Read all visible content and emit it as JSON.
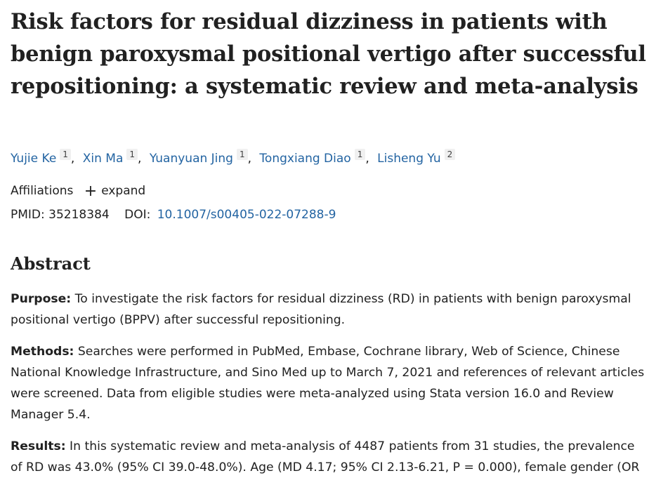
{
  "article": {
    "title": "Risk factors for residual dizziness in patients with benign paroxysmal positional vertigo after successful repositioning: a systematic review and meta-analysis",
    "authors": [
      {
        "name": "Yujie Ke",
        "aff": "1"
      },
      {
        "name": "Xin Ma",
        "aff": "1"
      },
      {
        "name": "Yuanyuan Jing",
        "aff": "1"
      },
      {
        "name": "Tongxiang Diao",
        "aff": "1"
      },
      {
        "name": "Lisheng Yu",
        "aff": "2"
      }
    ],
    "affiliations_label": "Affiliations",
    "expand_label": "expand",
    "pmid_label": "PMID:",
    "pmid": "35218384",
    "doi_label": "DOI:",
    "doi": "10.1007/s00405-022-07288-9"
  },
  "abstract": {
    "heading": "Abstract",
    "purpose_label": "Purpose:",
    "purpose_text": " To investigate the risk factors for residual dizziness (RD) in patients with benign paroxysmal positional vertigo (BPPV) after successful repositioning.",
    "methods_label": "Methods:",
    "methods_text": " Searches were performed in PubMed, Embase, Cochrane library, Web of Science, Chinese National Knowledge Infrastructure, and Sino Med up to March 7, 2021 and references of relevant articles were screened. Data from eligible studies were meta-analyzed using Stata version 16.0 and Review Manager 5.4.",
    "results_label": "Results:",
    "results_text": " In this systematic review and meta-analysis of 4487 patients from 31 studies, the prevalence of RD was 43.0% (95% CI 39.0-48.0%). Age (MD 4.17; 95% CI 2.13-6.21, P = 0.000), female gender (OR"
  }
}
